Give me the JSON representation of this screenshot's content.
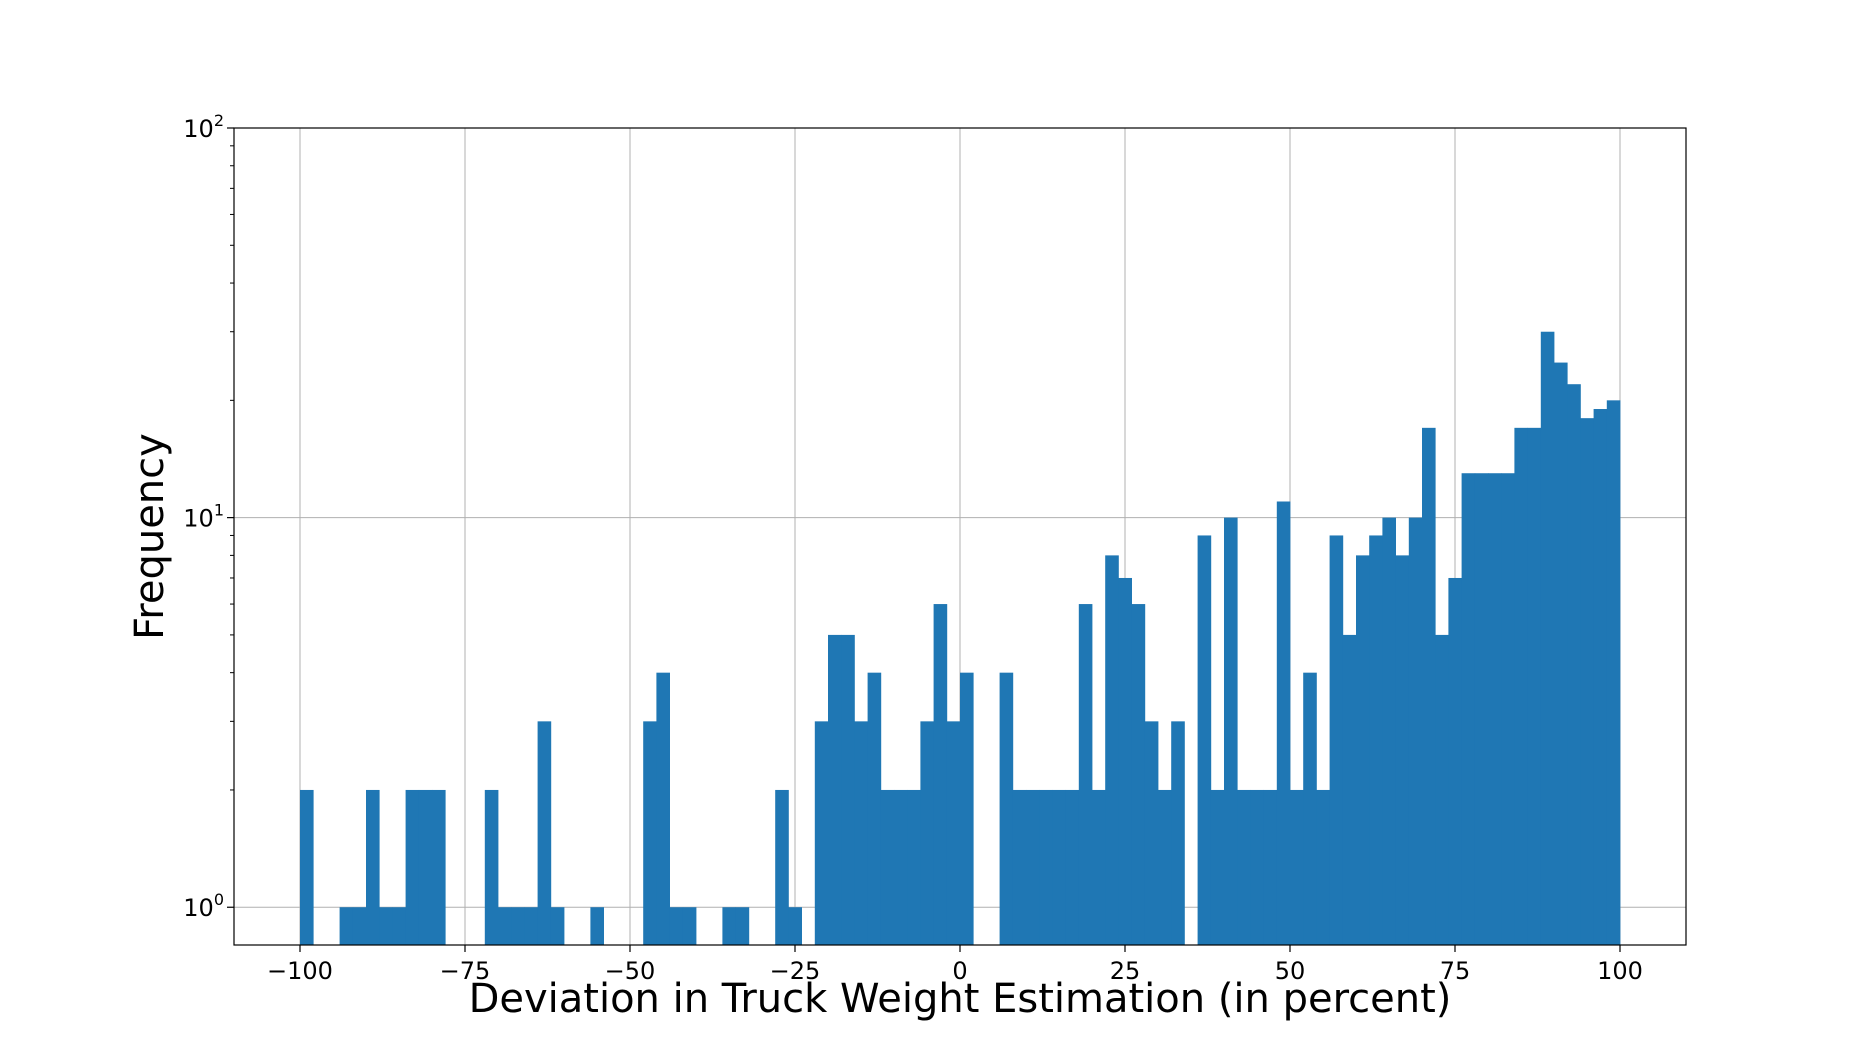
{
  "chart_data": {
    "type": "bar",
    "title": "",
    "xlabel": "Deviation in Truck Weight Estimation (in percent)",
    "ylabel": "Frequency",
    "y_scale": "log",
    "xlim": [
      -110,
      110
    ],
    "ylim": [
      0.8,
      100
    ],
    "grid": true,
    "bar_color": "#1f77b4",
    "x_ticks": [
      -100,
      -75,
      -50,
      -25,
      0,
      25,
      50,
      75,
      100
    ],
    "x_tick_labels": [
      "−100",
      "−75",
      "−50",
      "−25",
      "0",
      "25",
      "50",
      "75",
      "100"
    ],
    "y_ticks": [
      {
        "value": 1,
        "base": "10",
        "exp": "0"
      },
      {
        "value": 10,
        "base": "10",
        "exp": "1"
      },
      {
        "value": 100,
        "base": "10",
        "exp": "2"
      }
    ],
    "bin_range": [
      -100,
      100
    ],
    "bin_count": 100,
    "counts": [
      2,
      0,
      0,
      1,
      1,
      2,
      1,
      1,
      2,
      2,
      2,
      0,
      0,
      0,
      2,
      1,
      1,
      1,
      3,
      1,
      0,
      0,
      1,
      0,
      0,
      0,
      3,
      4,
      1,
      1,
      0,
      0,
      1,
      1,
      0,
      0,
      2,
      1,
      0,
      3,
      5,
      5,
      3,
      4,
      2,
      2,
      2,
      3,
      6,
      3,
      4,
      0,
      0,
      4,
      2,
      2,
      2,
      2,
      2,
      6,
      2,
      8,
      7,
      6,
      3,
      2,
      3,
      0,
      9,
      2,
      10,
      2,
      2,
      2,
      11,
      2,
      4,
      2,
      9,
      5,
      8,
      9,
      10,
      8,
      10,
      17,
      5,
      7,
      13,
      13,
      13,
      13,
      17,
      17,
      30,
      25,
      22,
      18,
      19,
      20
    ]
  }
}
